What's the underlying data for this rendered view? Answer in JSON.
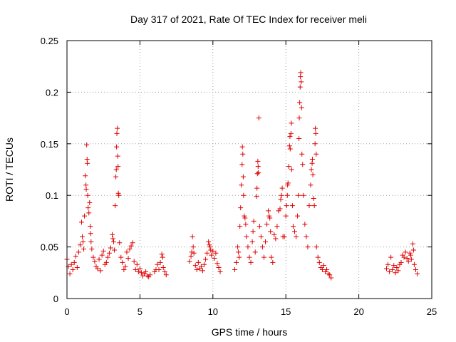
{
  "chart_data": {
    "type": "scatter",
    "title": "Day 317 of 2021, Rate Of TEC Index for receiver meli",
    "xlabel": "GPS time / hours",
    "ylabel": "ROTI / TECUs",
    "xlim": [
      0,
      25
    ],
    "ylim": [
      0,
      0.25
    ],
    "xticks": [
      0,
      5,
      10,
      15,
      20,
      25
    ],
    "xtick_labels": [
      "0",
      "5",
      "10",
      "15",
      "20",
      "25"
    ],
    "yticks": [
      0,
      0.05,
      0.1,
      0.15,
      0.2,
      0.25
    ],
    "ytick_labels": [
      "0",
      "0.05",
      "0.1",
      "0.15",
      "0.2",
      "0.25"
    ],
    "grid": true,
    "marker": "+",
    "color": "#e00000",
    "series": [
      {
        "name": "ROTI",
        "points": [
          [
            0.0,
            0.038
          ],
          [
            0.1,
            0.031
          ],
          [
            0.2,
            0.024
          ],
          [
            0.3,
            0.033
          ],
          [
            0.4,
            0.028
          ],
          [
            0.5,
            0.035
          ],
          [
            0.6,
            0.041
          ],
          [
            0.7,
            0.03
          ],
          [
            0.8,
            0.045
          ],
          [
            0.9,
            0.052
          ],
          [
            1.0,
            0.074
          ],
          [
            1.05,
            0.06
          ],
          [
            1.1,
            0.055
          ],
          [
            1.15,
            0.048
          ],
          [
            1.2,
            0.08
          ],
          [
            1.25,
            0.119
          ],
          [
            1.3,
            0.11
          ],
          [
            1.32,
            0.106
          ],
          [
            1.35,
            0.149
          ],
          [
            1.38,
            0.135
          ],
          [
            1.4,
            0.131
          ],
          [
            1.42,
            0.1
          ],
          [
            1.45,
            0.088
          ],
          [
            1.5,
            0.083
          ],
          [
            1.55,
            0.093
          ],
          [
            1.6,
            0.07
          ],
          [
            1.62,
            0.063
          ],
          [
            1.65,
            0.055
          ],
          [
            1.7,
            0.048
          ],
          [
            1.8,
            0.04
          ],
          [
            1.9,
            0.036
          ],
          [
            2.0,
            0.031
          ],
          [
            2.1,
            0.029
          ],
          [
            2.2,
            0.038
          ],
          [
            2.3,
            0.027
          ],
          [
            2.4,
            0.042
          ],
          [
            2.5,
            0.046
          ],
          [
            2.6,
            0.033
          ],
          [
            2.7,
            0.035
          ],
          [
            2.8,
            0.04
          ],
          [
            2.9,
            0.044
          ],
          [
            3.0,
            0.049
          ],
          [
            3.1,
            0.062
          ],
          [
            3.15,
            0.058
          ],
          [
            3.2,
            0.055
          ],
          [
            3.25,
            0.047
          ],
          [
            3.3,
            0.09
          ],
          [
            3.35,
            0.118
          ],
          [
            3.38,
            0.125
          ],
          [
            3.4,
            0.147
          ],
          [
            3.42,
            0.16
          ],
          [
            3.45,
            0.165
          ],
          [
            3.48,
            0.138
          ],
          [
            3.5,
            0.128
          ],
          [
            3.52,
            0.102
          ],
          [
            3.55,
            0.1
          ],
          [
            3.6,
            0.054
          ],
          [
            3.7,
            0.04
          ],
          [
            3.8,
            0.035
          ],
          [
            3.9,
            0.028
          ],
          [
            4.0,
            0.031
          ],
          [
            4.1,
            0.045
          ],
          [
            4.2,
            0.039
          ],
          [
            4.3,
            0.048
          ],
          [
            4.4,
            0.051
          ],
          [
            4.5,
            0.054
          ],
          [
            4.6,
            0.036
          ],
          [
            4.7,
            0.028
          ],
          [
            4.8,
            0.033
          ],
          [
            4.9,
            0.026
          ],
          [
            5.0,
            0.029
          ],
          [
            5.1,
            0.025
          ],
          [
            5.2,
            0.022
          ],
          [
            5.3,
            0.024
          ],
          [
            5.4,
            0.026
          ],
          [
            5.5,
            0.022
          ],
          [
            5.6,
            0.021
          ],
          [
            5.7,
            0.023
          ],
          [
            6.0,
            0.026
          ],
          [
            6.1,
            0.028
          ],
          [
            6.2,
            0.033
          ],
          [
            6.3,
            0.028
          ],
          [
            6.4,
            0.035
          ],
          [
            6.5,
            0.043
          ],
          [
            6.55,
            0.04
          ],
          [
            6.6,
            0.03
          ],
          [
            6.7,
            0.026
          ],
          [
            6.8,
            0.023
          ],
          [
            8.4,
            0.036
          ],
          [
            8.5,
            0.041
          ],
          [
            8.55,
            0.045
          ],
          [
            8.6,
            0.06
          ],
          [
            8.65,
            0.05
          ],
          [
            8.7,
            0.044
          ],
          [
            8.8,
            0.032
          ],
          [
            8.9,
            0.028
          ],
          [
            9.0,
            0.035
          ],
          [
            9.1,
            0.029
          ],
          [
            9.2,
            0.031
          ],
          [
            9.3,
            0.027
          ],
          [
            9.4,
            0.033
          ],
          [
            9.5,
            0.038
          ],
          [
            9.6,
            0.044
          ],
          [
            9.7,
            0.055
          ],
          [
            9.75,
            0.052
          ],
          [
            9.8,
            0.05
          ],
          [
            9.85,
            0.047
          ],
          [
            9.9,
            0.042
          ],
          [
            10.0,
            0.046
          ],
          [
            10.1,
            0.039
          ],
          [
            10.2,
            0.044
          ],
          [
            10.3,
            0.034
          ],
          [
            10.4,
            0.03
          ],
          [
            10.5,
            0.026
          ],
          [
            11.5,
            0.028
          ],
          [
            11.6,
            0.035
          ],
          [
            11.7,
            0.05
          ],
          [
            11.75,
            0.045
          ],
          [
            11.8,
            0.04
          ],
          [
            11.85,
            0.07
          ],
          [
            11.9,
            0.088
          ],
          [
            11.95,
            0.11
          ],
          [
            12.0,
            0.13
          ],
          [
            12.02,
            0.147
          ],
          [
            12.05,
            0.14
          ],
          [
            12.08,
            0.118
          ],
          [
            12.1,
            0.1
          ],
          [
            12.15,
            0.08
          ],
          [
            12.2,
            0.078
          ],
          [
            12.25,
            0.072
          ],
          [
            12.3,
            0.06
          ],
          [
            12.4,
            0.05
          ],
          [
            12.5,
            0.04
          ],
          [
            12.6,
            0.035
          ],
          [
            12.7,
            0.055
          ],
          [
            12.75,
            0.065
          ],
          [
            12.8,
            0.075
          ],
          [
            12.9,
            0.045
          ],
          [
            13.0,
            0.099
          ],
          [
            13.02,
            0.107
          ],
          [
            13.05,
            0.121
          ],
          [
            13.08,
            0.133
          ],
          [
            13.1,
            0.128
          ],
          [
            13.12,
            0.122
          ],
          [
            13.15,
            0.175
          ],
          [
            13.2,
            0.07
          ],
          [
            13.3,
            0.06
          ],
          [
            13.4,
            0.05
          ],
          [
            13.5,
            0.04
          ],
          [
            13.6,
            0.055
          ],
          [
            13.7,
            0.072
          ],
          [
            13.8,
            0.085
          ],
          [
            13.85,
            0.08
          ],
          [
            13.9,
            0.078
          ],
          [
            13.95,
            0.065
          ],
          [
            14.0,
            0.04
          ],
          [
            14.1,
            0.035
          ],
          [
            14.2,
            0.062
          ],
          [
            14.3,
            0.058
          ],
          [
            14.4,
            0.07
          ],
          [
            14.5,
            0.085
          ],
          [
            14.6,
            0.087
          ],
          [
            14.65,
            0.096
          ],
          [
            14.7,
            0.1
          ],
          [
            14.75,
            0.107
          ],
          [
            14.8,
            0.06
          ],
          [
            14.9,
            0.06
          ],
          [
            15.0,
            0.08
          ],
          [
            15.05,
            0.09
          ],
          [
            15.1,
            0.1
          ],
          [
            15.12,
            0.11
          ],
          [
            15.15,
            0.112
          ],
          [
            15.2,
            0.128
          ],
          [
            15.25,
            0.148
          ],
          [
            15.28,
            0.157
          ],
          [
            15.3,
            0.145
          ],
          [
            15.35,
            0.16
          ],
          [
            15.38,
            0.17
          ],
          [
            15.4,
            0.125
          ],
          [
            15.45,
            0.09
          ],
          [
            15.5,
            0.07
          ],
          [
            15.6,
            0.065
          ],
          [
            15.7,
            0.06
          ],
          [
            15.8,
            0.08
          ],
          [
            15.85,
            0.1
          ],
          [
            15.9,
            0.155
          ],
          [
            15.92,
            0.175
          ],
          [
            15.95,
            0.19
          ],
          [
            15.98,
            0.205
          ],
          [
            16.0,
            0.215
          ],
          [
            16.02,
            0.219
          ],
          [
            16.05,
            0.21
          ],
          [
            16.08,
            0.185
          ],
          [
            16.1,
            0.14
          ],
          [
            16.15,
            0.13
          ],
          [
            16.2,
            0.1
          ],
          [
            16.3,
            0.072
          ],
          [
            16.4,
            0.06
          ],
          [
            16.5,
            0.05
          ],
          [
            16.6,
            0.09
          ],
          [
            16.7,
            0.11
          ],
          [
            16.75,
            0.125
          ],
          [
            16.8,
            0.131
          ],
          [
            16.82,
            0.135
          ],
          [
            16.85,
            0.12
          ],
          [
            16.9,
            0.097
          ],
          [
            16.95,
            0.09
          ],
          [
            17.0,
            0.15
          ],
          [
            17.02,
            0.165
          ],
          [
            17.05,
            0.16
          ],
          [
            17.08,
            0.14
          ],
          [
            17.1,
            0.05
          ],
          [
            17.2,
            0.04
          ],
          [
            17.3,
            0.035
          ],
          [
            17.4,
            0.03
          ],
          [
            17.5,
            0.028
          ],
          [
            17.6,
            0.032
          ],
          [
            17.7,
            0.026
          ],
          [
            17.8,
            0.028
          ],
          [
            17.9,
            0.024
          ],
          [
            18.0,
            0.023
          ],
          [
            18.1,
            0.02
          ],
          [
            21.9,
            0.029
          ],
          [
            22.0,
            0.033
          ],
          [
            22.1,
            0.026
          ],
          [
            22.2,
            0.04
          ],
          [
            22.3,
            0.028
          ],
          [
            22.4,
            0.032
          ],
          [
            22.5,
            0.025
          ],
          [
            22.6,
            0.03
          ],
          [
            22.7,
            0.027
          ],
          [
            22.8,
            0.033
          ],
          [
            22.9,
            0.035
          ],
          [
            23.0,
            0.042
          ],
          [
            23.1,
            0.04
          ],
          [
            23.2,
            0.045
          ],
          [
            23.3,
            0.039
          ],
          [
            23.4,
            0.036
          ],
          [
            23.5,
            0.044
          ],
          [
            23.55,
            0.042
          ],
          [
            23.6,
            0.038
          ],
          [
            23.7,
            0.053
          ],
          [
            23.75,
            0.047
          ],
          [
            23.8,
            0.033
          ],
          [
            23.9,
            0.028
          ],
          [
            24.0,
            0.024
          ]
        ]
      }
    ]
  }
}
